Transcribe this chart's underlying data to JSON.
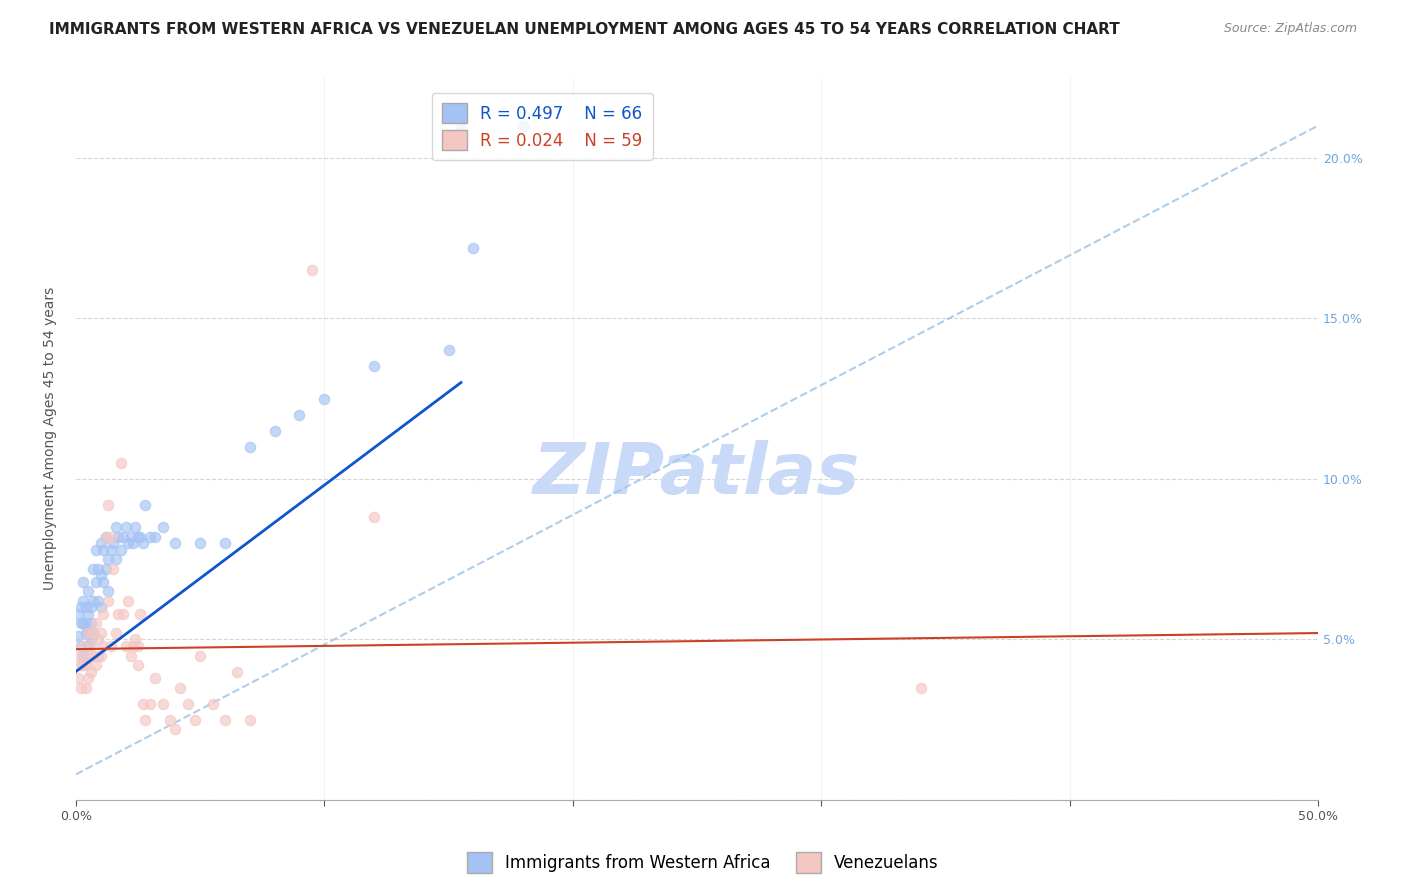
{
  "title": "IMMIGRANTS FROM WESTERN AFRICA VS VENEZUELAN UNEMPLOYMENT AMONG AGES 45 TO 54 YEARS CORRELATION CHART",
  "source": "Source: ZipAtlas.com",
  "ylabel": "Unemployment Among Ages 45 to 54 years",
  "xlim": [
    0,
    0.5
  ],
  "ylim": [
    0.0,
    0.225
  ],
  "blue_R": 0.497,
  "blue_N": 66,
  "pink_R": 0.024,
  "pink_N": 59,
  "blue_color": "#a4c2f4",
  "pink_color": "#f4c7c3",
  "blue_line_color": "#1155cc",
  "pink_line_color": "#cc4125",
  "dashed_line_color": "#9fc5e8",
  "watermark": "ZIPatlas",
  "watermark_color": "#c9daf8",
  "legend_label_blue": "Immigrants from Western Africa",
  "legend_label_pink": "Venezuelans",
  "blue_scatter_x": [
    0.001,
    0.001,
    0.002,
    0.002,
    0.002,
    0.003,
    0.003,
    0.003,
    0.003,
    0.004,
    0.004,
    0.004,
    0.005,
    0.005,
    0.005,
    0.005,
    0.006,
    0.006,
    0.006,
    0.007,
    0.007,
    0.007,
    0.008,
    0.008,
    0.009,
    0.009,
    0.01,
    0.01,
    0.01,
    0.011,
    0.011,
    0.012,
    0.012,
    0.013,
    0.013,
    0.014,
    0.015,
    0.016,
    0.016,
    0.017,
    0.018,
    0.019,
    0.02,
    0.021,
    0.022,
    0.023,
    0.024,
    0.025,
    0.026,
    0.027,
    0.028,
    0.03,
    0.032,
    0.035,
    0.04,
    0.05,
    0.06,
    0.07,
    0.08,
    0.09,
    0.1,
    0.12,
    0.15,
    0.155,
    0.16,
    0.18
  ],
  "blue_scatter_y": [
    0.051,
    0.058,
    0.055,
    0.048,
    0.06,
    0.068,
    0.055,
    0.062,
    0.045,
    0.06,
    0.055,
    0.052,
    0.065,
    0.058,
    0.052,
    0.048,
    0.06,
    0.055,
    0.05,
    0.072,
    0.062,
    0.052,
    0.078,
    0.068,
    0.072,
    0.062,
    0.08,
    0.07,
    0.06,
    0.078,
    0.068,
    0.082,
    0.072,
    0.075,
    0.065,
    0.078,
    0.08,
    0.085,
    0.075,
    0.082,
    0.078,
    0.082,
    0.085,
    0.08,
    0.082,
    0.08,
    0.085,
    0.082,
    0.082,
    0.08,
    0.092,
    0.082,
    0.082,
    0.085,
    0.08,
    0.08,
    0.08,
    0.11,
    0.115,
    0.12,
    0.125,
    0.135,
    0.14,
    0.209,
    0.172,
    0.21
  ],
  "pink_scatter_x": [
    0.001,
    0.001,
    0.002,
    0.002,
    0.003,
    0.003,
    0.004,
    0.004,
    0.005,
    0.005,
    0.005,
    0.006,
    0.006,
    0.007,
    0.007,
    0.008,
    0.008,
    0.009,
    0.009,
    0.01,
    0.01,
    0.011,
    0.011,
    0.012,
    0.013,
    0.013,
    0.014,
    0.014,
    0.015,
    0.016,
    0.017,
    0.018,
    0.019,
    0.02,
    0.021,
    0.022,
    0.023,
    0.024,
    0.025,
    0.025,
    0.026,
    0.027,
    0.028,
    0.03,
    0.032,
    0.035,
    0.038,
    0.04,
    0.042,
    0.045,
    0.048,
    0.05,
    0.055,
    0.06,
    0.065,
    0.07,
    0.095,
    0.12,
    0.34
  ],
  "pink_scatter_y": [
    0.045,
    0.038,
    0.042,
    0.035,
    0.048,
    0.042,
    0.042,
    0.035,
    0.052,
    0.045,
    0.038,
    0.048,
    0.04,
    0.052,
    0.045,
    0.055,
    0.042,
    0.05,
    0.045,
    0.052,
    0.045,
    0.058,
    0.048,
    0.082,
    0.092,
    0.062,
    0.082,
    0.048,
    0.072,
    0.052,
    0.058,
    0.105,
    0.058,
    0.048,
    0.062,
    0.045,
    0.048,
    0.05,
    0.048,
    0.042,
    0.058,
    0.03,
    0.025,
    0.03,
    0.038,
    0.03,
    0.025,
    0.022,
    0.035,
    0.03,
    0.025,
    0.045,
    0.03,
    0.025,
    0.04,
    0.025,
    0.165,
    0.088,
    0.035
  ],
  "blue_trend_x": [
    0.0,
    0.155
  ],
  "blue_trend_y": [
    0.04,
    0.13
  ],
  "pink_trend_x": [
    0.0,
    0.5
  ],
  "pink_trend_y": [
    0.047,
    0.052
  ],
  "dashed_trend_x": [
    0.0,
    0.5
  ],
  "dashed_trend_y": [
    0.008,
    0.21
  ],
  "title_fontsize": 11,
  "source_fontsize": 9,
  "axis_fontsize": 9,
  "legend_fontsize": 12,
  "ylabel_fontsize": 10,
  "marker_size": 55,
  "marker_alpha": 0.65
}
